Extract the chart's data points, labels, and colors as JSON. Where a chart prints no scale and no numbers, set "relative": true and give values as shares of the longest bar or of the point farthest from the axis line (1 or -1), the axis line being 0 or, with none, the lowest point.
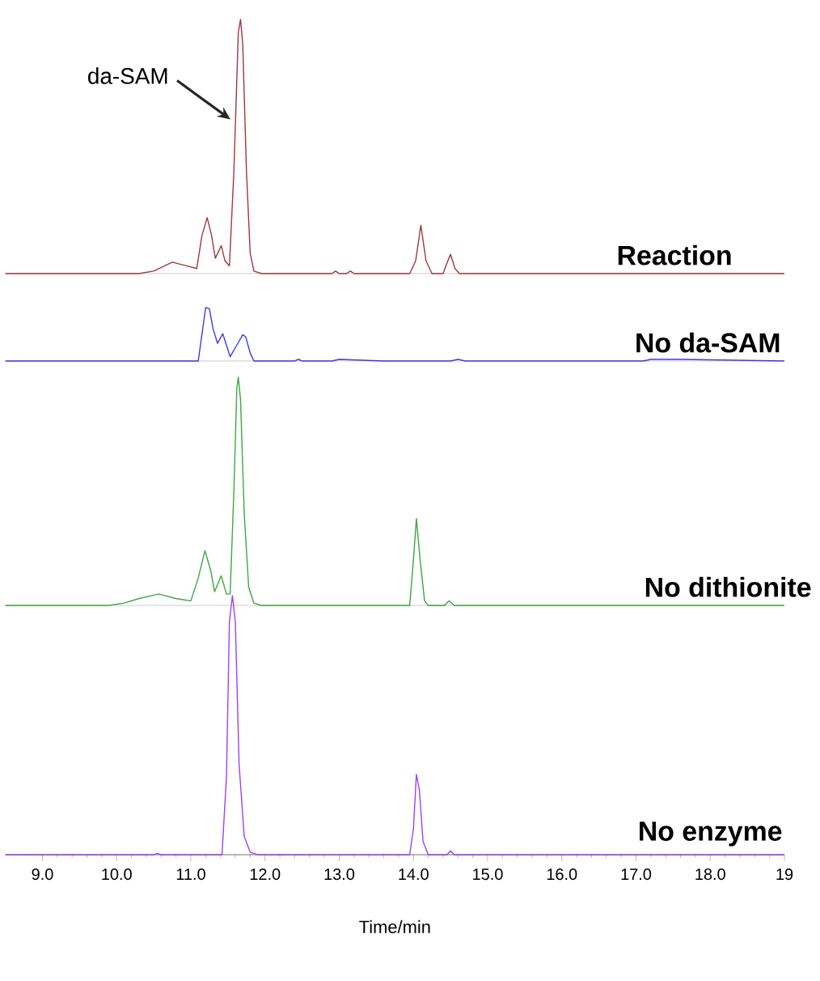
{
  "chart_data": [
    {
      "type": "line",
      "relative": true,
      "tick_labels": false,
      "xlim": [
        8.5,
        19.0
      ],
      "annotations": [
        {
          "text": "da-SAM",
          "x": 11.6,
          "y": 0.6
        }
      ],
      "x": [
        8.5,
        10.3,
        10.5,
        10.75,
        10.95,
        11.08,
        11.15,
        11.22,
        11.28,
        11.33,
        11.41,
        11.46,
        11.52,
        11.58,
        11.64,
        11.67,
        11.7,
        11.75,
        11.8,
        11.85,
        11.95,
        12.9,
        12.95,
        13.0,
        13.1,
        13.15,
        13.2,
        13.95,
        14.03,
        14.1,
        14.17,
        14.25,
        14.4,
        14.45,
        14.5,
        14.56,
        14.62,
        19.0
      ],
      "series": [
        {
          "name": "Reaction",
          "color": "#a0393b",
          "values": [
            0,
            0,
            0.01,
            0.045,
            0.03,
            0.02,
            0.15,
            0.22,
            0.15,
            0.06,
            0.11,
            0.05,
            0.03,
            0.4,
            0.95,
            1,
            0.9,
            0.4,
            0.08,
            0.01,
            0,
            0,
            0.01,
            0,
            0,
            0.01,
            0,
            0,
            0.05,
            0.19,
            0.05,
            0,
            0,
            0.04,
            0.076,
            0.02,
            0,
            0
          ]
        }
      ]
    },
    {
      "type": "line",
      "relative": true,
      "tick_labels": false,
      "xlim": [
        8.5,
        19.0
      ],
      "x": [
        8.5,
        11.1,
        11.15,
        11.2,
        11.25,
        11.3,
        11.36,
        11.43,
        11.48,
        11.53,
        11.6,
        11.7,
        11.74,
        11.8,
        11.85,
        12.4,
        12.45,
        12.5,
        12.9,
        13.0,
        13.6,
        14.5,
        14.6,
        14.7,
        17.1,
        17.2,
        17.6,
        19.0
      ],
      "series": [
        {
          "name": "No da-SAM",
          "color": "#3a3af0",
          "values": [
            0,
            0,
            0.5,
            1,
            0.98,
            0.6,
            0.33,
            0.51,
            0.3,
            0.08,
            0.25,
            0.49,
            0.45,
            0.15,
            0,
            0,
            0.03,
            0,
            0,
            0.03,
            0,
            0,
            0.03,
            0,
            0,
            0.03,
            0.03,
            0
          ]
        }
      ]
    },
    {
      "type": "line",
      "relative": true,
      "tick_labels": false,
      "xlim": [
        8.5,
        19.0
      ],
      "x": [
        8.5,
        9.9,
        10.1,
        10.3,
        10.57,
        10.8,
        11.0,
        11.1,
        11.19,
        11.27,
        11.32,
        11.41,
        11.48,
        11.53,
        11.58,
        11.62,
        11.64,
        11.67,
        11.72,
        11.78,
        11.85,
        11.95,
        13.95,
        14.0,
        14.04,
        14.09,
        14.15,
        14.2,
        14.42,
        14.48,
        14.55,
        19.0
      ],
      "series": [
        {
          "name": "No dithionite",
          "color": "#3ea83e",
          "values": [
            0,
            0,
            0.01,
            0.03,
            0.05,
            0.03,
            0.02,
            0.12,
            0.24,
            0.15,
            0.06,
            0.13,
            0.05,
            0.05,
            0.5,
            0.95,
            1,
            0.9,
            0.4,
            0.08,
            0.01,
            0,
            0,
            0.2,
            0.38,
            0.2,
            0.02,
            0,
            0,
            0.02,
            0,
            0
          ]
        }
      ]
    },
    {
      "type": "line",
      "relative": true,
      "tick_labels": "x",
      "xlim": [
        8.5,
        19.0
      ],
      "xlabel": "Time/min",
      "xticks": [
        {
          "value": 9,
          "label": "9.0"
        },
        {
          "value": 10,
          "label": "10.0"
        },
        {
          "value": 11,
          "label": "11.0"
        },
        {
          "value": 12,
          "label": "12.0"
        },
        {
          "value": 13,
          "label": "13.0"
        },
        {
          "value": 14,
          "label": "14.0"
        },
        {
          "value": 15,
          "label": "15.0"
        },
        {
          "value": 16,
          "label": "16.0"
        },
        {
          "value": 17,
          "label": "17.0"
        },
        {
          "value": 18,
          "label": "18.0"
        },
        {
          "value": 19,
          "label": "19"
        }
      ],
      "x": [
        8.5,
        10.5,
        10.55,
        10.6,
        11.42,
        11.48,
        11.52,
        11.56,
        11.6,
        11.65,
        11.72,
        11.8,
        11.9,
        13.95,
        14.0,
        14.04,
        14.08,
        14.13,
        14.2,
        14.45,
        14.5,
        14.55,
        19.0
      ],
      "series": [
        {
          "name": "No enzyme",
          "color": "#a040f5",
          "values": [
            0,
            0,
            0.005,
            0,
            0,
            0.3,
            0.9,
            1,
            0.9,
            0.35,
            0.07,
            0.01,
            0,
            0,
            0.1,
            0.31,
            0.25,
            0.05,
            0,
            0,
            0.015,
            0,
            0
          ]
        }
      ]
    }
  ]
}
